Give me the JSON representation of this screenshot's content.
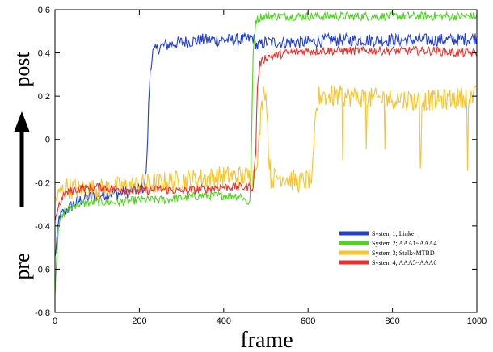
{
  "chart_data": {
    "type": "line",
    "xlabel": "frame",
    "ylabel_top": "post",
    "ylabel_bottom": "pre",
    "xlim": [
      0,
      1000
    ],
    "ylim": [
      -0.8,
      0.6
    ],
    "x_ticks": [
      0,
      200,
      400,
      600,
      800,
      1000
    ],
    "x_tick_labels": [
      "0",
      "200",
      "400",
      "600",
      "800",
      "1000"
    ],
    "y_ticks": [
      -0.8,
      -0.6,
      -0.4,
      -0.2,
      0,
      0.2,
      0.4,
      0.6
    ],
    "y_tick_labels": [
      "-0.8",
      "-0.6",
      "-0.4",
      "-0.2",
      "0",
      "0.2",
      "0.4",
      "0.6"
    ],
    "grid": false,
    "legend_position": "bottom-right",
    "series": [
      {
        "name": "System 1; Linker",
        "color": "#1f3fd8",
        "points": [
          [
            0,
            -0.55
          ],
          [
            10,
            -0.36
          ],
          [
            25,
            -0.33
          ],
          [
            50,
            -0.29
          ],
          [
            75,
            -0.27
          ],
          [
            100,
            -0.26
          ],
          [
            125,
            -0.25
          ],
          [
            150,
            -0.25
          ],
          [
            175,
            -0.24
          ],
          [
            200,
            -0.23
          ],
          [
            212,
            -0.22
          ],
          [
            218,
            -0.1
          ],
          [
            222,
            0.15
          ],
          [
            226,
            0.33
          ],
          [
            232,
            0.4
          ],
          [
            250,
            0.43
          ],
          [
            300,
            0.45
          ],
          [
            350,
            0.46
          ],
          [
            400,
            0.46
          ],
          [
            450,
            0.46
          ],
          [
            470,
            0.47
          ],
          [
            480,
            0.43
          ],
          [
            500,
            0.45
          ],
          [
            550,
            0.45
          ],
          [
            600,
            0.45
          ],
          [
            650,
            0.46
          ],
          [
            700,
            0.46
          ],
          [
            750,
            0.46
          ],
          [
            800,
            0.46
          ],
          [
            850,
            0.46
          ],
          [
            900,
            0.46
          ],
          [
            950,
            0.46
          ],
          [
            1000,
            0.47
          ]
        ],
        "noise": 0.03
      },
      {
        "name": "System 2; AAA1~AAA4",
        "color": "#4ed41f",
        "points": [
          [
            0,
            -0.7
          ],
          [
            8,
            -0.4
          ],
          [
            25,
            -0.33
          ],
          [
            50,
            -0.3
          ],
          [
            100,
            -0.29
          ],
          [
            150,
            -0.29
          ],
          [
            200,
            -0.28
          ],
          [
            250,
            -0.28
          ],
          [
            300,
            -0.27
          ],
          [
            350,
            -0.26
          ],
          [
            400,
            -0.26
          ],
          [
            440,
            -0.26
          ],
          [
            462,
            -0.3
          ],
          [
            466,
            0.0
          ],
          [
            470,
            0.4
          ],
          [
            476,
            0.55
          ],
          [
            490,
            0.57
          ],
          [
            550,
            0.57
          ],
          [
            600,
            0.57
          ],
          [
            650,
            0.57
          ],
          [
            700,
            0.57
          ],
          [
            750,
            0.57
          ],
          [
            800,
            0.57
          ],
          [
            850,
            0.57
          ],
          [
            900,
            0.57
          ],
          [
            950,
            0.57
          ],
          [
            1000,
            0.57
          ]
        ],
        "noise": 0.02
      },
      {
        "name": "System 3; Stalk~MTBD",
        "color": "#f6c52c",
        "points": [
          [
            0,
            -0.28
          ],
          [
            25,
            -0.22
          ],
          [
            50,
            -0.23
          ],
          [
            100,
            -0.23
          ],
          [
            150,
            -0.22
          ],
          [
            200,
            -0.21
          ],
          [
            250,
            -0.2
          ],
          [
            300,
            -0.19
          ],
          [
            350,
            -0.18
          ],
          [
            400,
            -0.17
          ],
          [
            450,
            -0.17
          ],
          [
            470,
            -0.17
          ],
          [
            482,
            -0.05
          ],
          [
            490,
            0.15
          ],
          [
            496,
            0.25
          ],
          [
            502,
            0.18
          ],
          [
            506,
            -0.05
          ],
          [
            512,
            -0.18
          ],
          [
            540,
            -0.17
          ],
          [
            580,
            -0.2
          ],
          [
            610,
            -0.18
          ],
          [
            618,
            0.1
          ],
          [
            626,
            0.2
          ],
          [
            650,
            0.2
          ],
          [
            700,
            0.2
          ],
          [
            750,
            0.19
          ],
          [
            800,
            0.19
          ],
          [
            850,
            0.18
          ],
          [
            900,
            0.18
          ],
          [
            950,
            0.19
          ],
          [
            1000,
            0.2
          ]
        ],
        "noise": 0.05
      },
      {
        "name": "System 4; AAA5~AAA6",
        "color": "#e8312c",
        "points": [
          [
            0,
            -0.37
          ],
          [
            10,
            -0.3
          ],
          [
            25,
            -0.25
          ],
          [
            50,
            -0.23
          ],
          [
            100,
            -0.22
          ],
          [
            150,
            -0.23
          ],
          [
            200,
            -0.24
          ],
          [
            250,
            -0.23
          ],
          [
            300,
            -0.24
          ],
          [
            350,
            -0.23
          ],
          [
            400,
            -0.22
          ],
          [
            450,
            -0.22
          ],
          [
            470,
            -0.22
          ],
          [
            476,
            -0.05
          ],
          [
            480,
            0.25
          ],
          [
            486,
            0.35
          ],
          [
            500,
            0.38
          ],
          [
            550,
            0.4
          ],
          [
            600,
            0.41
          ],
          [
            650,
            0.41
          ],
          [
            700,
            0.41
          ],
          [
            750,
            0.41
          ],
          [
            800,
            0.41
          ],
          [
            850,
            0.41
          ],
          [
            900,
            0.41
          ],
          [
            950,
            0.4
          ],
          [
            1000,
            0.4
          ]
        ],
        "noise": 0.02
      }
    ]
  }
}
